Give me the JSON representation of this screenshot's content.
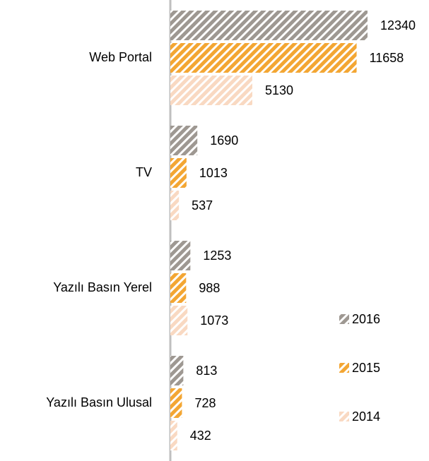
{
  "chart_data": {
    "type": "bar",
    "orientation": "horizontal",
    "pattern": "hatch",
    "categories": [
      "Web Portal",
      "TV",
      "Yazılı Basın Yerel",
      "Yazılı Basın Ulusal"
    ],
    "series": [
      {
        "name": "2016",
        "color": "#9e9892",
        "values": [
          12340,
          1690,
          1253,
          813
        ]
      },
      {
        "name": "2015",
        "color": "#f3a633",
        "values": [
          11658,
          1013,
          988,
          728
        ]
      },
      {
        "name": "2014",
        "color": "#f9d9c2",
        "values": [
          5130,
          537,
          1073,
          432
        ]
      }
    ],
    "legend": "right"
  }
}
